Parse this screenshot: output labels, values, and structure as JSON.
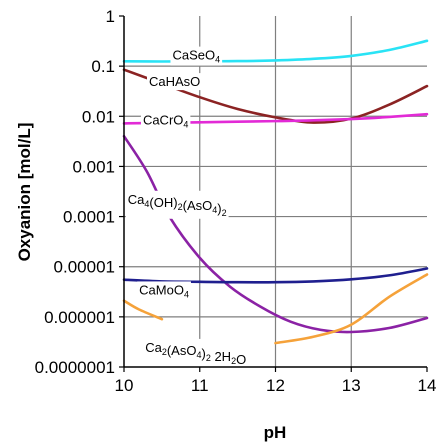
{
  "chart_data": {
    "type": "line",
    "title": "",
    "xlabel": "pH",
    "ylabel": "Oxyanion [mol/L]",
    "xlim": [
      10,
      14
    ],
    "ylim": [
      1e-07,
      1
    ],
    "y_scale": "log",
    "grid": true,
    "x_ticks": [
      "10",
      "11",
      "12",
      "13",
      "14"
    ],
    "y_ticks": [
      "1",
      "0.1",
      "0.01",
      "0.001",
      "0.0001",
      "0.00001",
      "0.000001",
      "0.0000001"
    ],
    "series": [
      {
        "name": "CaSeO4",
        "label_parts": [
          {
            "t": "CaSeO"
          },
          {
            "t": "4",
            "sub": true
          }
        ],
        "label_at": [
          10.64,
          0.135
        ],
        "color": "#29e3f5",
        "x": [
          10.0,
          10.5,
          11.0,
          11.5,
          12.0,
          12.5,
          13.0,
          13.5,
          14.0
        ],
        "y": [
          0.125,
          0.124,
          0.125,
          0.126,
          0.13,
          0.14,
          0.16,
          0.21,
          0.32
        ]
      },
      {
        "name": "CaHAsO",
        "label_parts": [
          {
            "t": "CaHAsO"
          }
        ],
        "label_at": [
          10.33,
          0.04
        ],
        "color": "#8b2323",
        "x": [
          10.0,
          10.5,
          11.0,
          11.5,
          12.0,
          12.5,
          13.0,
          13.5,
          14.0
        ],
        "y": [
          0.085,
          0.045,
          0.024,
          0.014,
          0.0095,
          0.0075,
          0.009,
          0.017,
          0.04
        ]
      },
      {
        "name": "CaCrO4",
        "label_parts": [
          {
            "t": "CaCrO"
          },
          {
            "t": "4",
            "sub": true
          }
        ],
        "label_at": [
          10.25,
          0.0068
        ],
        "color": "#e22ad6",
        "x": [
          10.0,
          10.5,
          11.0,
          11.5,
          12.0,
          12.5,
          13.0,
          13.5,
          14.0
        ],
        "y": [
          0.0072,
          0.0074,
          0.0076,
          0.0078,
          0.008,
          0.0083,
          0.0088,
          0.0097,
          0.011
        ]
      },
      {
        "name": "Ca4(OH)2(AsO4)2",
        "label_parts": [
          {
            "t": "Ca"
          },
          {
            "t": "4",
            "sub": true
          },
          {
            "t": "(OH)"
          },
          {
            "t": "2",
            "sub": true
          },
          {
            "t": "(AsO"
          },
          {
            "t": "4",
            "sub": true
          },
          {
            "t": ")"
          },
          {
            "t": "2",
            "sub": true
          }
        ],
        "label_at": [
          10.05,
          0.00018
        ],
        "color": "#8b22a5",
        "x": [
          10.0,
          10.3,
          10.6,
          11.0,
          11.4,
          11.8,
          12.2,
          12.6,
          13.0,
          13.5,
          14.0
        ],
        "y": [
          0.004,
          0.0008,
          0.0001,
          1.5e-05,
          4e-06,
          1.6e-06,
          8e-07,
          5.5e-07,
          5e-07,
          6e-07,
          9.5e-07
        ]
      },
      {
        "name": "CaMoO4",
        "label_parts": [
          {
            "t": "CaMoO"
          },
          {
            "t": "4",
            "sub": true
          }
        ],
        "label_at": [
          10.2,
          2.8e-06
        ],
        "color": "#1f1f8f",
        "x": [
          10.0,
          10.5,
          11.0,
          11.5,
          12.0,
          12.5,
          13.0,
          13.5,
          14.0
        ],
        "y": [
          5.5e-06,
          5.1e-06,
          5e-06,
          4.9e-06,
          4.9e-06,
          5.1e-06,
          5.6e-06,
          6.7e-06,
          9.2e-06
        ]
      },
      {
        "name": "Ca2(AsO4)2 2H2O",
        "label_parts": [
          {
            "t": "Ca"
          },
          {
            "t": "2",
            "sub": true
          },
          {
            "t": "(AsO"
          },
          {
            "t": "4",
            "sub": true
          },
          {
            "t": ")"
          },
          {
            "t": "2",
            "sub": true
          },
          {
            "t": " 2H"
          },
          {
            "t": "2",
            "sub": true
          },
          {
            "t": "O"
          }
        ],
        "label_at": [
          10.28,
          2e-07
        ],
        "color": "#f5a23a",
        "segments": [
          {
            "x": [
              10.0,
              10.2,
              10.5
            ],
            "y": [
              2.1e-06,
              1.4e-06,
              9e-07
            ]
          },
          {
            "x": [
              12.0,
              12.5,
              13.0,
              13.5,
              14.0
            ],
            "y": [
              3e-07,
              4e-07,
              7e-07,
              2.5e-06,
              7e-06
            ]
          }
        ]
      }
    ]
  }
}
